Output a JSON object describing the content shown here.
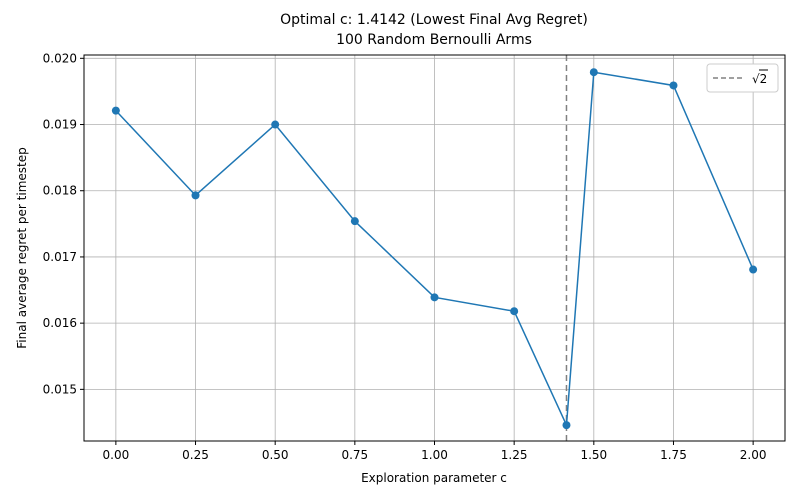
{
  "chart_data": {
    "type": "line",
    "title": "Optimal c: 1.4142 (Lowest Final Avg Regret)",
    "subtitle": "100 Random Bernoulli Arms",
    "xlabel": "Exploration parameter c",
    "ylabel": "Final average regret per timestep",
    "x_ticks": [
      "0.00",
      "0.25",
      "0.50",
      "0.75",
      "1.00",
      "1.25",
      "1.50",
      "1.75",
      "2.00"
    ],
    "y_ticks": [
      "0.015",
      "0.016",
      "0.017",
      "0.018",
      "0.019",
      "0.020"
    ],
    "xlim": [
      -0.1,
      2.1
    ],
    "ylim": [
      0.01422,
      0.02005
    ],
    "grid": true,
    "series": [
      {
        "x": [
          0.0,
          0.25,
          0.5,
          0.75,
          1.0,
          1.25,
          1.4142,
          1.5,
          1.75,
          2.0
        ],
        "y": [
          0.01921,
          0.01793,
          0.019,
          0.01754,
          0.01639,
          0.01618,
          0.01446,
          0.01979,
          0.01959,
          0.01681
        ],
        "color": "#1f77b4",
        "marker": "circle"
      }
    ],
    "reference_line": {
      "orientation": "vertical",
      "x": 1.4142,
      "style": "dashed",
      "color": "#808080",
      "legend_label": "√2"
    },
    "legend": {
      "position": "top-right"
    }
  }
}
